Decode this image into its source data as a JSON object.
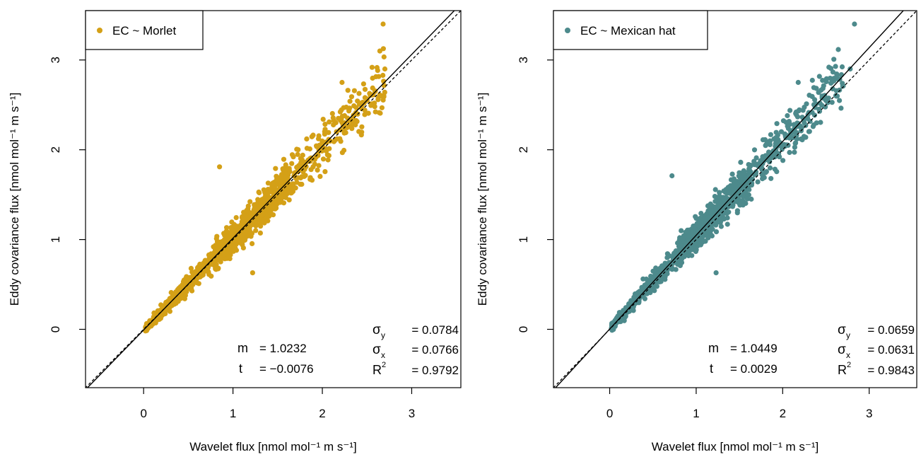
{
  "chart_data": [
    {
      "type": "scatter",
      "legend": {
        "label": "EC ~ Morlet",
        "position": "top-left"
      },
      "xlabel": "Wavelet flux [nmol mol⁻¹ m s⁻¹]",
      "ylabel": "Eddy covariance flux [nmol mol⁻¹ m s⁻¹]",
      "xlim": [
        -0.65,
        3.55
      ],
      "ylim": [
        -0.65,
        3.55
      ],
      "xticks": [
        "0",
        "1",
        "2",
        "3"
      ],
      "yticks": [
        "0",
        "1",
        "2",
        "3"
      ],
      "grid": false,
      "point_color": "#D4A017",
      "fit": {
        "slope": 1.0232,
        "intercept": -0.0076,
        "style": "solid"
      },
      "reference_line": {
        "slope": 1,
        "intercept": 0,
        "style": "dashed"
      },
      "stats_labels": {
        "m": "m",
        "t": "t",
        "sy": "σ",
        "sy_sub": "y",
        "sx": "σ",
        "sx_sub": "x",
        "r2": "R",
        "r2_sup": "2"
      },
      "stats_values": {
        "m": "= 1.0232",
        "t": "= −0.0076",
        "sy": "= 0.0784",
        "sx": "= 0.0766",
        "r2": "= 0.9792"
      },
      "sample_points": [
        [
          0.12,
          0.14
        ],
        [
          0.25,
          0.3
        ],
        [
          0.5,
          0.55
        ],
        [
          0.8,
          0.85
        ],
        [
          1.0,
          1.05
        ],
        [
          1.25,
          1.3
        ],
        [
          1.5,
          1.55
        ],
        [
          1.75,
          1.8
        ],
        [
          2.0,
          2.05
        ],
        [
          2.25,
          2.3
        ],
        [
          2.5,
          2.55
        ],
        [
          2.7,
          2.9
        ],
        [
          2.68,
          3.4
        ],
        [
          0.85,
          1.81
        ],
        [
          1.22,
          0.63
        ],
        [
          2.22,
          2.75
        ]
      ],
      "noise_seed": 7
    },
    {
      "type": "scatter",
      "legend": {
        "label": "EC ~ Mexican hat",
        "position": "top-left"
      },
      "xlabel": "Wavelet flux [nmol mol⁻¹ m s⁻¹]",
      "ylabel": "Eddy covariance flux [nmol mol⁻¹ m s⁻¹]",
      "xlim": [
        -0.65,
        3.55
      ],
      "ylim": [
        -0.65,
        3.55
      ],
      "xticks": [
        "0",
        "1",
        "2",
        "3"
      ],
      "yticks": [
        "0",
        "1",
        "2",
        "3"
      ],
      "grid": false,
      "point_color": "#4D8A8C",
      "fit": {
        "slope": 1.0449,
        "intercept": 0.0029,
        "style": "solid"
      },
      "reference_line": {
        "slope": 1,
        "intercept": 0,
        "style": "dashed"
      },
      "stats_labels": {
        "m": "m",
        "t": "t",
        "sy": "σ",
        "sy_sub": "y",
        "sx": "σ",
        "sx_sub": "x",
        "r2": "R",
        "r2_sup": "2"
      },
      "stats_values": {
        "m": "= 1.0449",
        "t": "= 0.0029",
        "sy": "= 0.0659",
        "sx": "= 0.0631",
        "r2": "= 0.9843"
      },
      "sample_points": [
        [
          0.12,
          0.14
        ],
        [
          0.25,
          0.3
        ],
        [
          0.5,
          0.55
        ],
        [
          0.8,
          0.85
        ],
        [
          1.0,
          1.05
        ],
        [
          1.25,
          1.3
        ],
        [
          1.5,
          1.55
        ],
        [
          1.75,
          1.8
        ],
        [
          2.0,
          2.05
        ],
        [
          2.25,
          2.3
        ],
        [
          2.5,
          2.55
        ],
        [
          2.78,
          2.9
        ],
        [
          2.83,
          3.4
        ],
        [
          0.72,
          1.71
        ],
        [
          1.23,
          0.63
        ],
        [
          2.18,
          2.75
        ]
      ],
      "noise_seed": 11
    }
  ]
}
